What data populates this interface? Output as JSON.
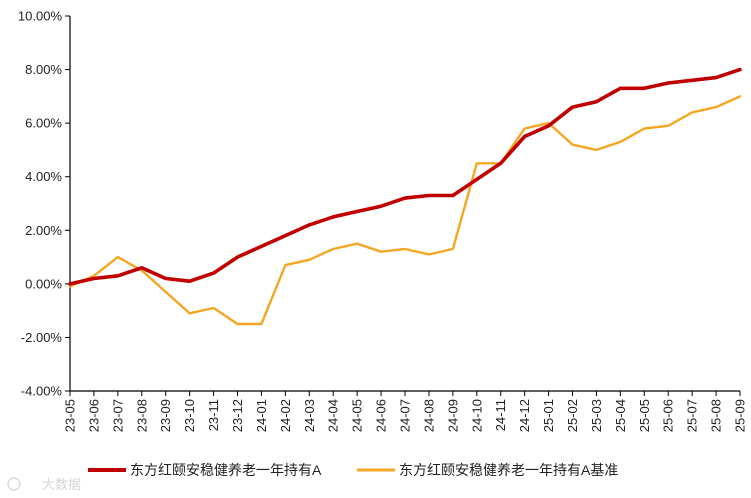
{
  "chart_data": {
    "type": "line",
    "title": "",
    "xlabel": "",
    "ylabel": "",
    "x": [
      "23-05",
      "23-06",
      "23-07",
      "23-08",
      "23-09",
      "23-10",
      "23-11",
      "23-12",
      "24-01",
      "24-02",
      "24-03",
      "24-04",
      "24-05",
      "24-06",
      "24-07",
      "24-08",
      "24-09",
      "24-10",
      "24-11",
      "24-12",
      "25-01",
      "25-02",
      "25-03",
      "25-04",
      "25-05",
      "25-06",
      "25-07",
      "25-08",
      "25-09"
    ],
    "ylim": [
      -4,
      10
    ],
    "yticks": [
      -4,
      -2,
      0,
      2,
      4,
      6,
      8,
      10
    ],
    "ytick_labels": [
      "-4.00%",
      "-2.00%",
      "0.00%",
      "2.00%",
      "4.00%",
      "6.00%",
      "8.00%",
      "10.00%"
    ],
    "grid": false,
    "legend_position": "bottom",
    "series": [
      {
        "name": "东方红颐安稳健养老一年持有A",
        "color": "#c00000",
        "values": [
          0.0,
          0.2,
          0.3,
          0.6,
          0.2,
          0.1,
          0.4,
          1.0,
          1.4,
          1.8,
          2.2,
          2.5,
          2.7,
          2.9,
          3.2,
          3.3,
          3.3,
          3.9,
          4.5,
          5.5,
          5.9,
          6.6,
          6.8,
          7.3,
          7.3,
          7.5,
          7.6,
          7.7,
          8.0
        ]
      },
      {
        "name": "东方红颐安稳健养老一年持有A基准",
        "color": "#f5a623",
        "values": [
          -0.1,
          0.3,
          1.0,
          0.5,
          -0.3,
          -1.1,
          -0.9,
          -1.5,
          -1.5,
          0.7,
          0.9,
          1.3,
          1.5,
          1.2,
          1.3,
          1.1,
          1.3,
          4.5,
          4.5,
          5.8,
          6.0,
          5.2,
          5.0,
          5.3,
          5.8,
          5.9,
          6.4,
          6.6,
          7.0
        ]
      }
    ]
  },
  "watermark": "大数据"
}
